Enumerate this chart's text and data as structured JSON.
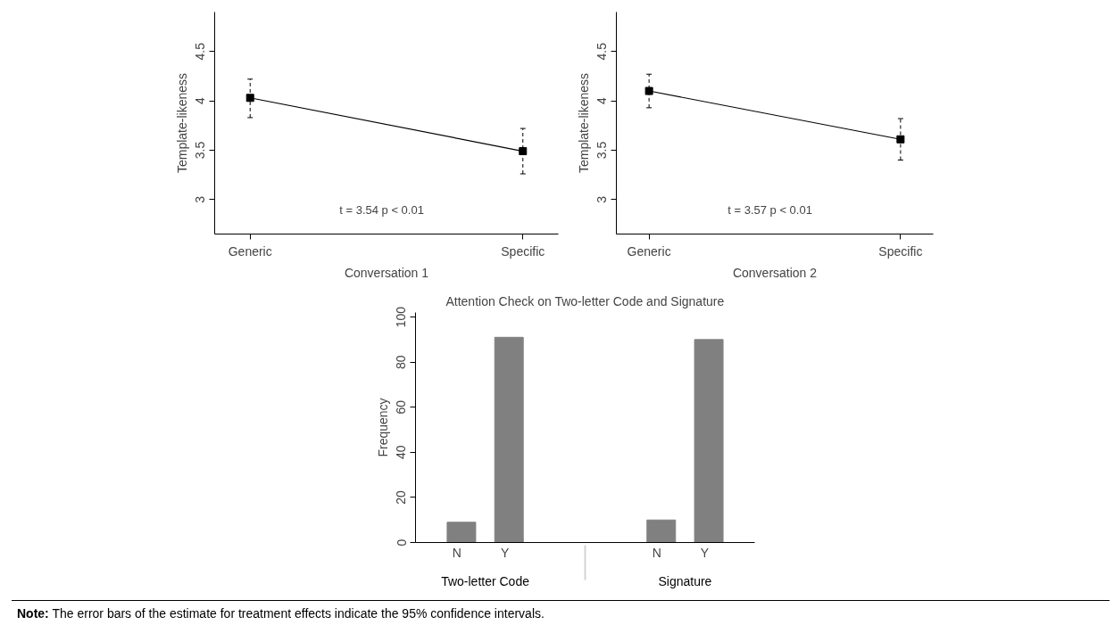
{
  "chart_data": [
    {
      "type": "line",
      "categories": [
        "Generic",
        "Specific"
      ],
      "xlabel": "Conversation 1",
      "ylabel": "Template-likeness",
      "ylim": [
        2.65,
        4.9
      ],
      "yticks": [
        3,
        3.5,
        4,
        4.5
      ],
      "marker": "square",
      "grid": false,
      "annotations": [
        "t = 3.54    p < 0.01"
      ],
      "series": [
        {
          "color": "#000000",
          "values": [
            4.03,
            3.49
          ],
          "errors": [
            [
              3.83,
              4.22
            ],
            [
              3.26,
              3.72
            ]
          ]
        }
      ]
    },
    {
      "type": "line",
      "categories": [
        "Generic",
        "Specific"
      ],
      "xlabel": "Conversation 2",
      "ylabel": "Template-likeness",
      "ylim": [
        2.65,
        4.9
      ],
      "yticks": [
        3,
        3.5,
        4,
        4.5
      ],
      "marker": "square",
      "grid": false,
      "annotations": [
        "t = 3.57    p < 0.01"
      ],
      "series": [
        {
          "color": "#000000",
          "values": [
            4.1,
            3.61
          ],
          "errors": [
            [
              3.93,
              4.27
            ],
            [
              3.4,
              3.82
            ]
          ]
        }
      ]
    },
    {
      "type": "bar",
      "title": "Attention Check on Two-letter Code and Signature",
      "categories": [
        "N",
        "Y",
        "N",
        "Y"
      ],
      "ylabel": "Frequency",
      "ylim": [
        0,
        102
      ],
      "yticks": [
        0,
        20,
        40,
        60,
        80,
        100
      ],
      "grid": false,
      "annotations": [
        "Two-letter Code",
        "Signature"
      ],
      "series": [
        {
          "color": "#808080",
          "values": [
            9,
            91,
            10,
            90
          ]
        }
      ]
    },
    {
      "type": "other",
      "annotations": [
        "Note: The error bars of the estimate for treatment effects indicate the 95% confidence intervals."
      ]
    }
  ]
}
